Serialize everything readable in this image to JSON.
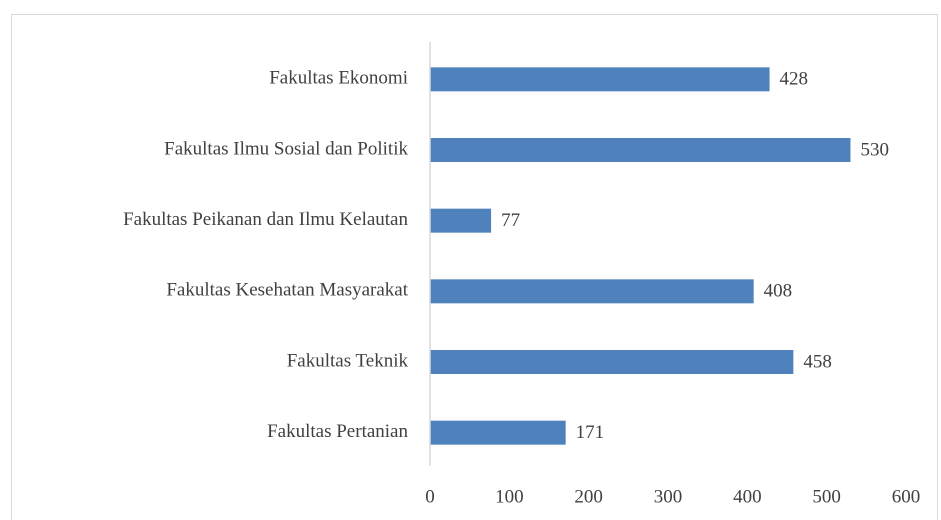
{
  "chart_data": {
    "type": "bar",
    "orientation": "horizontal",
    "categories": [
      "Fakultas Ekonomi",
      "Fakultas Ilmu Sosial dan Politik",
      "Fakultas Peikanan dan Ilmu Kelautan",
      "Fakultas Kesehatan Masyarakat",
      "Fakultas Teknik",
      "Fakultas Pertanian"
    ],
    "values": [
      428,
      530,
      77,
      408,
      458,
      171
    ],
    "color": "#4f81bd",
    "xlim": [
      0,
      600
    ],
    "xticks": [
      0,
      100,
      200,
      300,
      400,
      500,
      600
    ],
    "grid": false
  }
}
